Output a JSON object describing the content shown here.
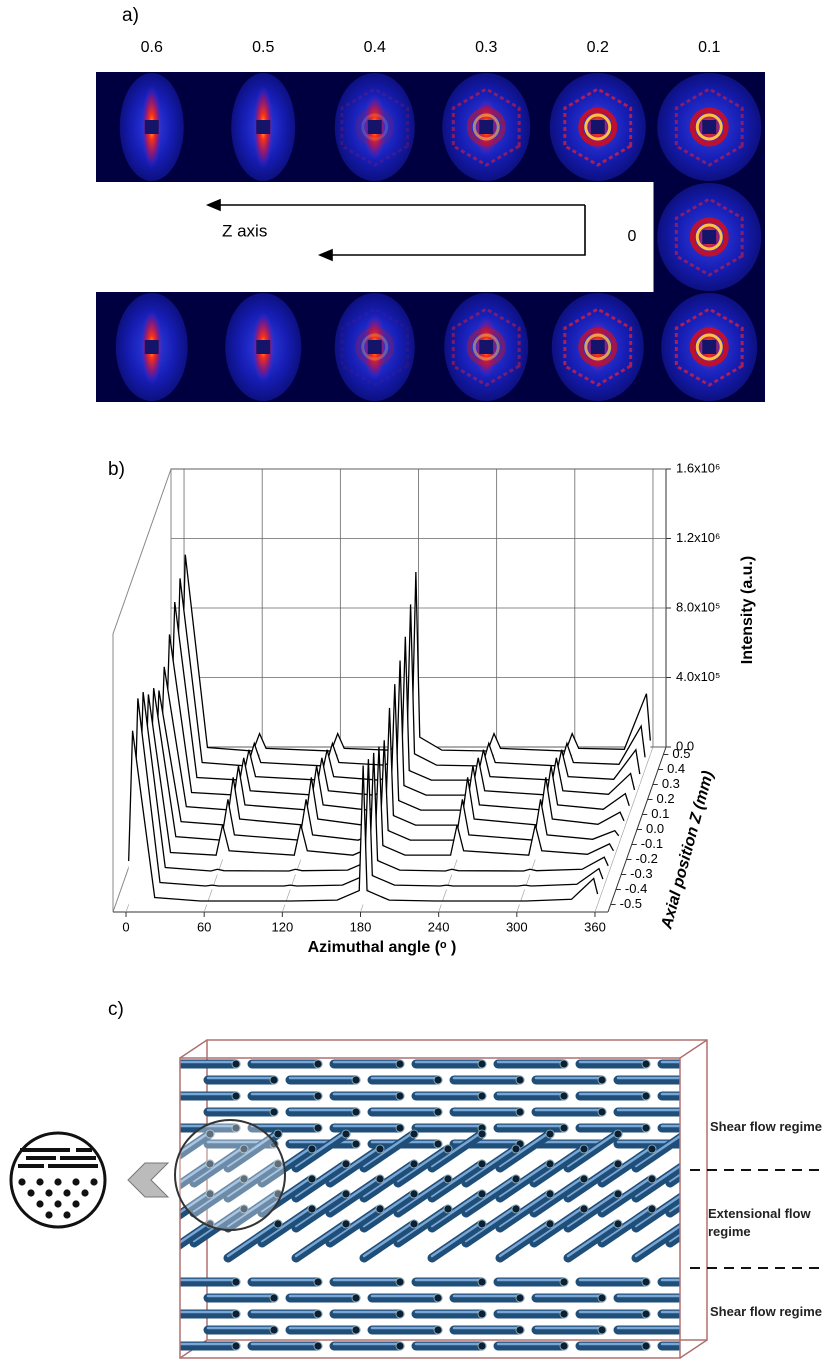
{
  "panel_a": {
    "label": "a)",
    "columns": [
      "0.6",
      "0.5",
      "0.4",
      "0.3",
      "0.2",
      "0.1"
    ],
    "middle": "0",
    "arrow_label": "Z axis"
  },
  "chart_data": {
    "type": "waterfall",
    "panel_label": "b)",
    "xlabel": "Azimuthal angle (ᵒ )",
    "ylabel": "Intensity (a.u.)",
    "zlabel": "Axial position Z (mm)",
    "xlim": [
      -10,
      370
    ],
    "xticks": [
      0,
      60,
      120,
      180,
      240,
      300,
      360
    ],
    "ylim": [
      0,
      1600000
    ],
    "yticks": [
      {
        "value": 0,
        "label": "0.0"
      },
      {
        "value": 400000,
        "label": "4.0x10⁵"
      },
      {
        "value": 800000,
        "label": "8.0x10⁵"
      },
      {
        "value": 1200000,
        "label": "1.2x10⁶"
      },
      {
        "value": 1600000,
        "label": "1.6x10⁶"
      }
    ],
    "zlim": [
      -0.55,
      0.55
    ],
    "zticks": [
      -0.5,
      -0.4,
      -0.3,
      -0.2,
      -0.1,
      {
        "value": 0,
        "label": "0.0"
      },
      0.1,
      0.2,
      0.3,
      0.4,
      0.5
    ],
    "grid": true,
    "line_color": "#000000",
    "x": [
      0,
      3,
      20,
      55,
      60,
      65,
      115,
      120,
      125,
      160,
      177,
      180,
      183,
      200,
      235,
      240,
      245,
      295,
      300,
      305,
      340,
      357,
      360
    ],
    "series": [
      {
        "z": -0.5,
        "values": [
          250000,
          1000000,
          40000,
          20000,
          20000,
          20000,
          20000,
          20000,
          20000,
          25000,
          80000,
          800000,
          80000,
          25000,
          20000,
          20000,
          20000,
          20000,
          20000,
          20000,
          30000,
          150000,
          60000
        ]
      },
      {
        "z": -0.4,
        "values": [
          280000,
          1100000,
          40000,
          20000,
          25000,
          20000,
          20000,
          25000,
          20000,
          25000,
          80000,
          750000,
          80000,
          25000,
          20000,
          25000,
          20000,
          20000,
          25000,
          20000,
          30000,
          120000,
          60000
        ]
      },
      {
        "z": -0.3,
        "values": [
          260000,
          1050000,
          40000,
          20000,
          30000,
          22000,
          20000,
          30000,
          22000,
          25000,
          80000,
          700000,
          80000,
          25000,
          20000,
          30000,
          22000,
          20000,
          30000,
          22000,
          30000,
          100000,
          50000
        ]
      },
      {
        "z": -0.2,
        "values": [
          240000,
          950000,
          40000,
          25000,
          200000,
          50000,
          25000,
          200000,
          50000,
          25000,
          80000,
          650000,
          80000,
          25000,
          25000,
          200000,
          50000,
          25000,
          200000,
          50000,
          30000,
          90000,
          50000
        ]
      },
      {
        "z": -0.1,
        "values": [
          220000,
          900000,
          45000,
          25000,
          260000,
          55000,
          25000,
          260000,
          55000,
          25000,
          80000,
          600000,
          80000,
          25000,
          25000,
          260000,
          55000,
          25000,
          260000,
          55000,
          30000,
          80000,
          50000
        ]
      },
      {
        "z": 0,
        "values": [
          200000,
          800000,
          45000,
          25000,
          300000,
          60000,
          25000,
          300000,
          60000,
          25000,
          80000,
          700000,
          80000,
          25000,
          25000,
          300000,
          60000,
          25000,
          300000,
          60000,
          30000,
          100000,
          50000
        ]
      },
      {
        "z": 0.1,
        "values": [
          210000,
          850000,
          45000,
          25000,
          280000,
          55000,
          25000,
          280000,
          55000,
          25000,
          80000,
          750000,
          80000,
          25000,
          25000,
          280000,
          55000,
          25000,
          280000,
          55000,
          30000,
          120000,
          50000
        ]
      },
      {
        "z": 0.2,
        "values": [
          240000,
          950000,
          40000,
          25000,
          240000,
          50000,
          25000,
          240000,
          50000,
          25000,
          80000,
          800000,
          80000,
          25000,
          25000,
          240000,
          50000,
          25000,
          240000,
          50000,
          30000,
          150000,
          55000
        ]
      },
      {
        "z": 0.3,
        "values": [
          260000,
          1050000,
          40000,
          25000,
          200000,
          45000,
          25000,
          200000,
          45000,
          25000,
          80000,
          850000,
          80000,
          25000,
          25000,
          200000,
          45000,
          25000,
          200000,
          45000,
          30000,
          200000,
          60000
        ]
      },
      {
        "z": 0.4,
        "values": [
          280000,
          1100000,
          40000,
          20000,
          150000,
          40000,
          20000,
          150000,
          40000,
          25000,
          90000,
          950000,
          90000,
          25000,
          20000,
          150000,
          40000,
          20000,
          150000,
          40000,
          30000,
          250000,
          70000
        ]
      },
      {
        "z": 0.5,
        "values": [
          300000,
          1150000,
          40000,
          20000,
          120000,
          35000,
          20000,
          120000,
          35000,
          25000,
          100000,
          1050000,
          100000,
          25000,
          20000,
          120000,
          35000,
          20000,
          120000,
          35000,
          30000,
          350000,
          80000
        ]
      }
    ]
  },
  "panel_c": {
    "label": "c)",
    "regimes": [
      "Shear flow regime",
      "Extensional flow regime",
      "Shear flow regime"
    ]
  }
}
